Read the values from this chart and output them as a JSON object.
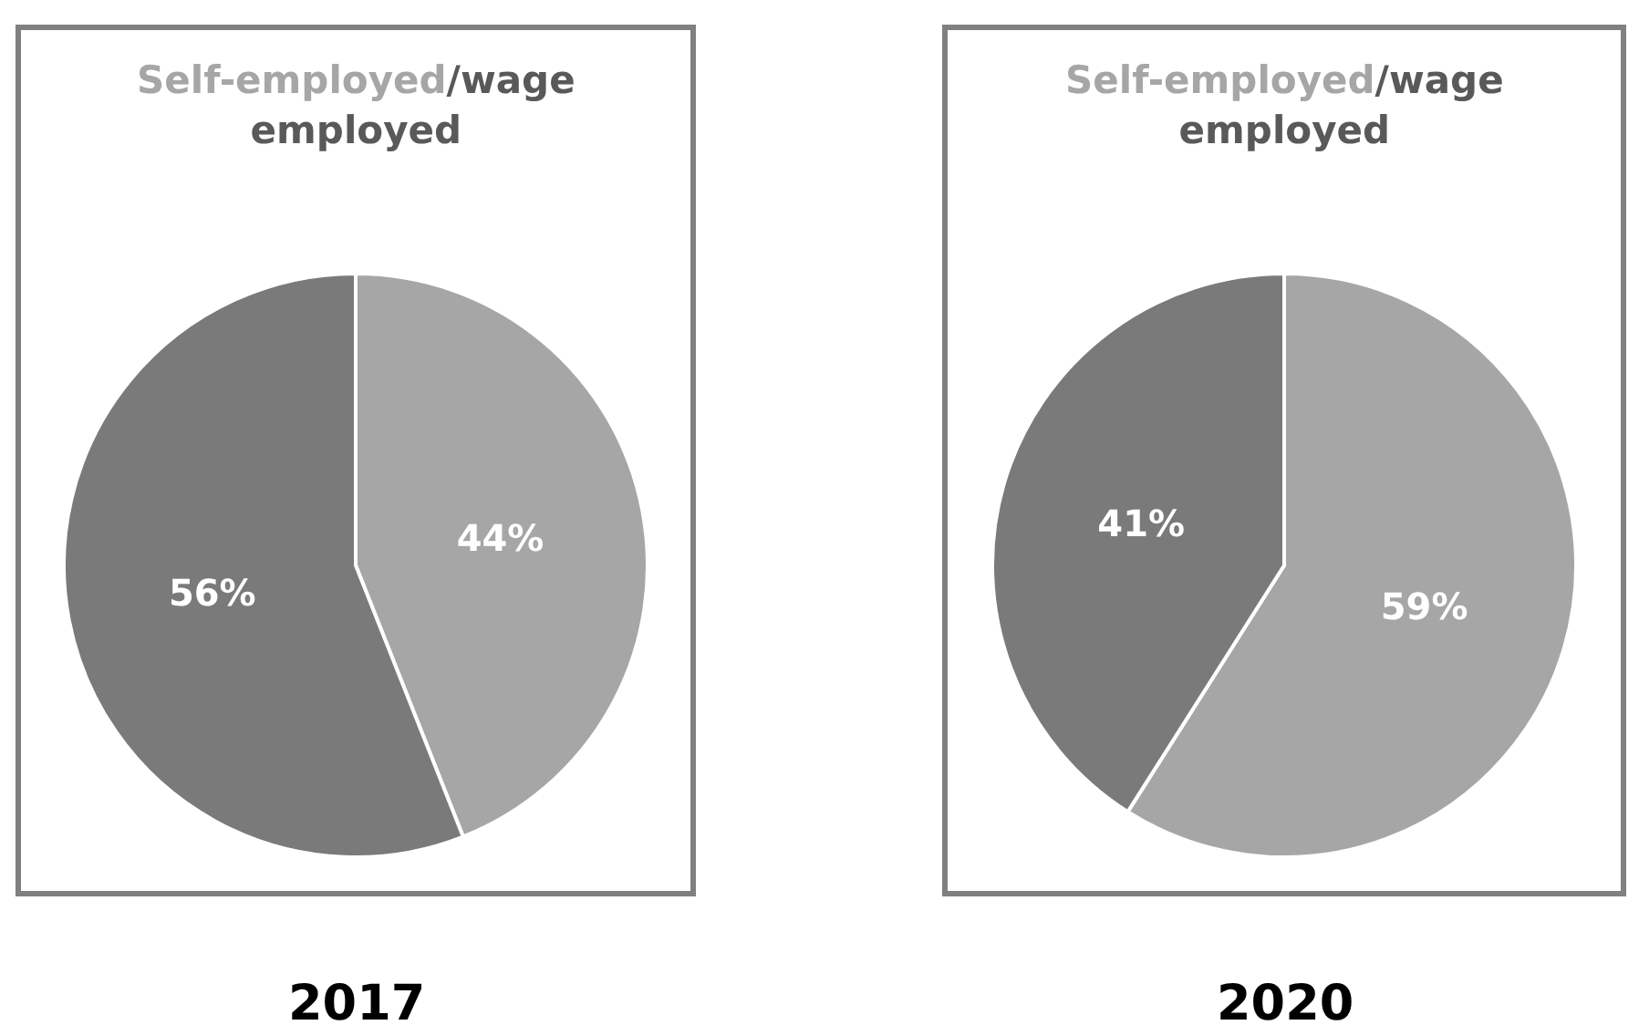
{
  "chart_data": [
    {
      "type": "pie",
      "categories": [
        "Self-employed",
        "/wage employed"
      ],
      "values": [
        44,
        56
      ],
      "value_labels": [
        "44%",
        "56%"
      ],
      "colors": [
        "#a6a6a6",
        "#7a7a7a"
      ],
      "annotations": [
        "2017"
      ]
    },
    {
      "type": "pie",
      "categories": [
        "Self-employed",
        "/wage employed"
      ],
      "values": [
        59,
        41
      ],
      "value_labels": [
        "59%",
        "41%"
      ],
      "colors": [
        "#a6a6a6",
        "#7a7a7a"
      ],
      "annotations": [
        "2020"
      ]
    }
  ]
}
